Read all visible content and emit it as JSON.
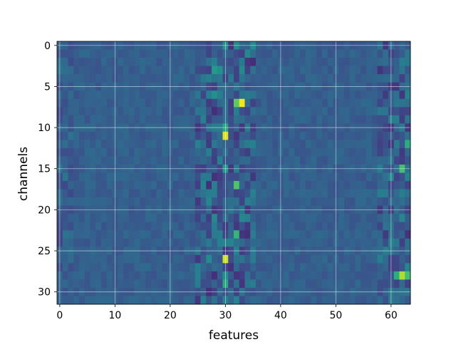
{
  "chart_data": {
    "type": "heatmap",
    "title": "",
    "xlabel": "features",
    "ylabel": "channels",
    "x_range": [
      -0.5,
      63.5
    ],
    "y_range": [
      31.5,
      -0.5
    ],
    "x_ticks": [
      0,
      10,
      20,
      30,
      40,
      50,
      60
    ],
    "y_ticks": [
      0,
      5,
      10,
      15,
      20,
      25,
      30
    ],
    "grid": true,
    "colormap": "viridis",
    "n_rows": 32,
    "n_cols": 64,
    "baseline_value": 0.3,
    "hot_cells": [
      {
        "row": 7,
        "col": 33,
        "value": 0.98
      },
      {
        "row": 7,
        "col": 32,
        "value": 0.75
      },
      {
        "row": 7,
        "col": 34,
        "value": 0.35
      },
      {
        "row": 11,
        "col": 30,
        "value": 0.95
      },
      {
        "row": 10,
        "col": 30,
        "value": 0.6
      },
      {
        "row": 26,
        "col": 30,
        "value": 0.93
      },
      {
        "row": 28,
        "col": 62,
        "value": 0.88
      },
      {
        "row": 28,
        "col": 61,
        "value": 0.62
      },
      {
        "row": 28,
        "col": 63,
        "value": 0.7
      },
      {
        "row": 15,
        "col": 62,
        "value": 0.7
      },
      {
        "row": 17,
        "col": 32,
        "value": 0.72
      },
      {
        "row": 23,
        "col": 32,
        "value": 0.66
      },
      {
        "row": 3,
        "col": 28,
        "value": 0.55
      },
      {
        "row": 3,
        "col": 29,
        "value": 0.5
      },
      {
        "row": 6,
        "col": 28,
        "value": 0.5
      },
      {
        "row": 12,
        "col": 63,
        "value": 0.62
      },
      {
        "row": 29,
        "col": 30,
        "value": 0.6
      },
      {
        "row": 15,
        "col": 30,
        "value": 0.55
      },
      {
        "row": 28,
        "col": 30,
        "value": 0.5
      },
      {
        "row": 0,
        "col": 30,
        "value": 0.5
      },
      {
        "row": 0,
        "col": 32,
        "value": 0.48
      },
      {
        "row": 6,
        "col": 63,
        "value": 0.45
      }
    ]
  }
}
